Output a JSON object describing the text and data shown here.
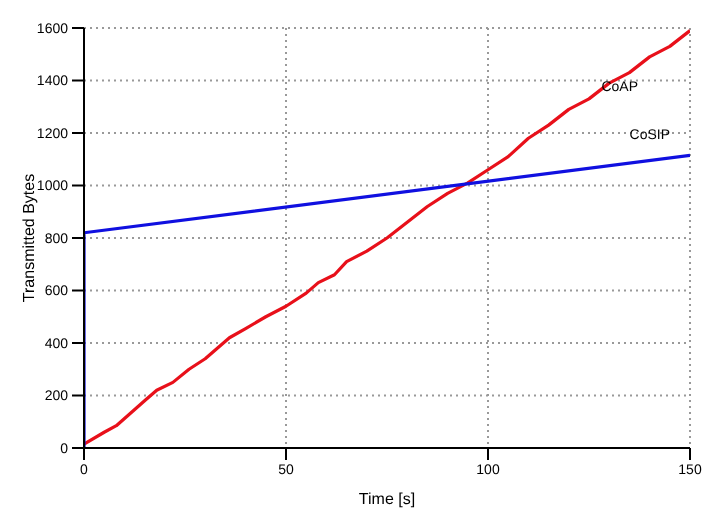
{
  "chart_data": {
    "type": "line",
    "xlabel": "Time [s]",
    "ylabel": "Transmitted Bytes",
    "xlim": [
      0,
      150
    ],
    "xticks": [
      0,
      50,
      100,
      150
    ],
    "ylim": [
      0,
      1600
    ],
    "yticks": [
      0,
      200,
      400,
      600,
      800,
      1000,
      1200,
      1400,
      1600
    ],
    "grid": true,
    "line_style": "solid",
    "marker": "none",
    "series": [
      {
        "name": "CoAP",
        "color": "#e8101a",
        "x": [
          0,
          5,
          8,
          15,
          18,
          22,
          26,
          30,
          36,
          40,
          45,
          50,
          55,
          58,
          62,
          65,
          70,
          75,
          80,
          85,
          90,
          95,
          100,
          105,
          110,
          115,
          120,
          125,
          130,
          135,
          140,
          145,
          150
        ],
        "values": [
          15,
          60,
          85,
          180,
          220,
          250,
          300,
          340,
          420,
          455,
          500,
          540,
          590,
          630,
          660,
          710,
          750,
          800,
          860,
          920,
          970,
          1010,
          1060,
          1110,
          1180,
          1230,
          1290,
          1330,
          1390,
          1430,
          1490,
          1530,
          1590
        ]
      },
      {
        "name": "CoSIP",
        "color": "#1010e0",
        "x": [
          0,
          0,
          150
        ],
        "values": [
          0,
          820,
          1115
        ]
      }
    ]
  }
}
